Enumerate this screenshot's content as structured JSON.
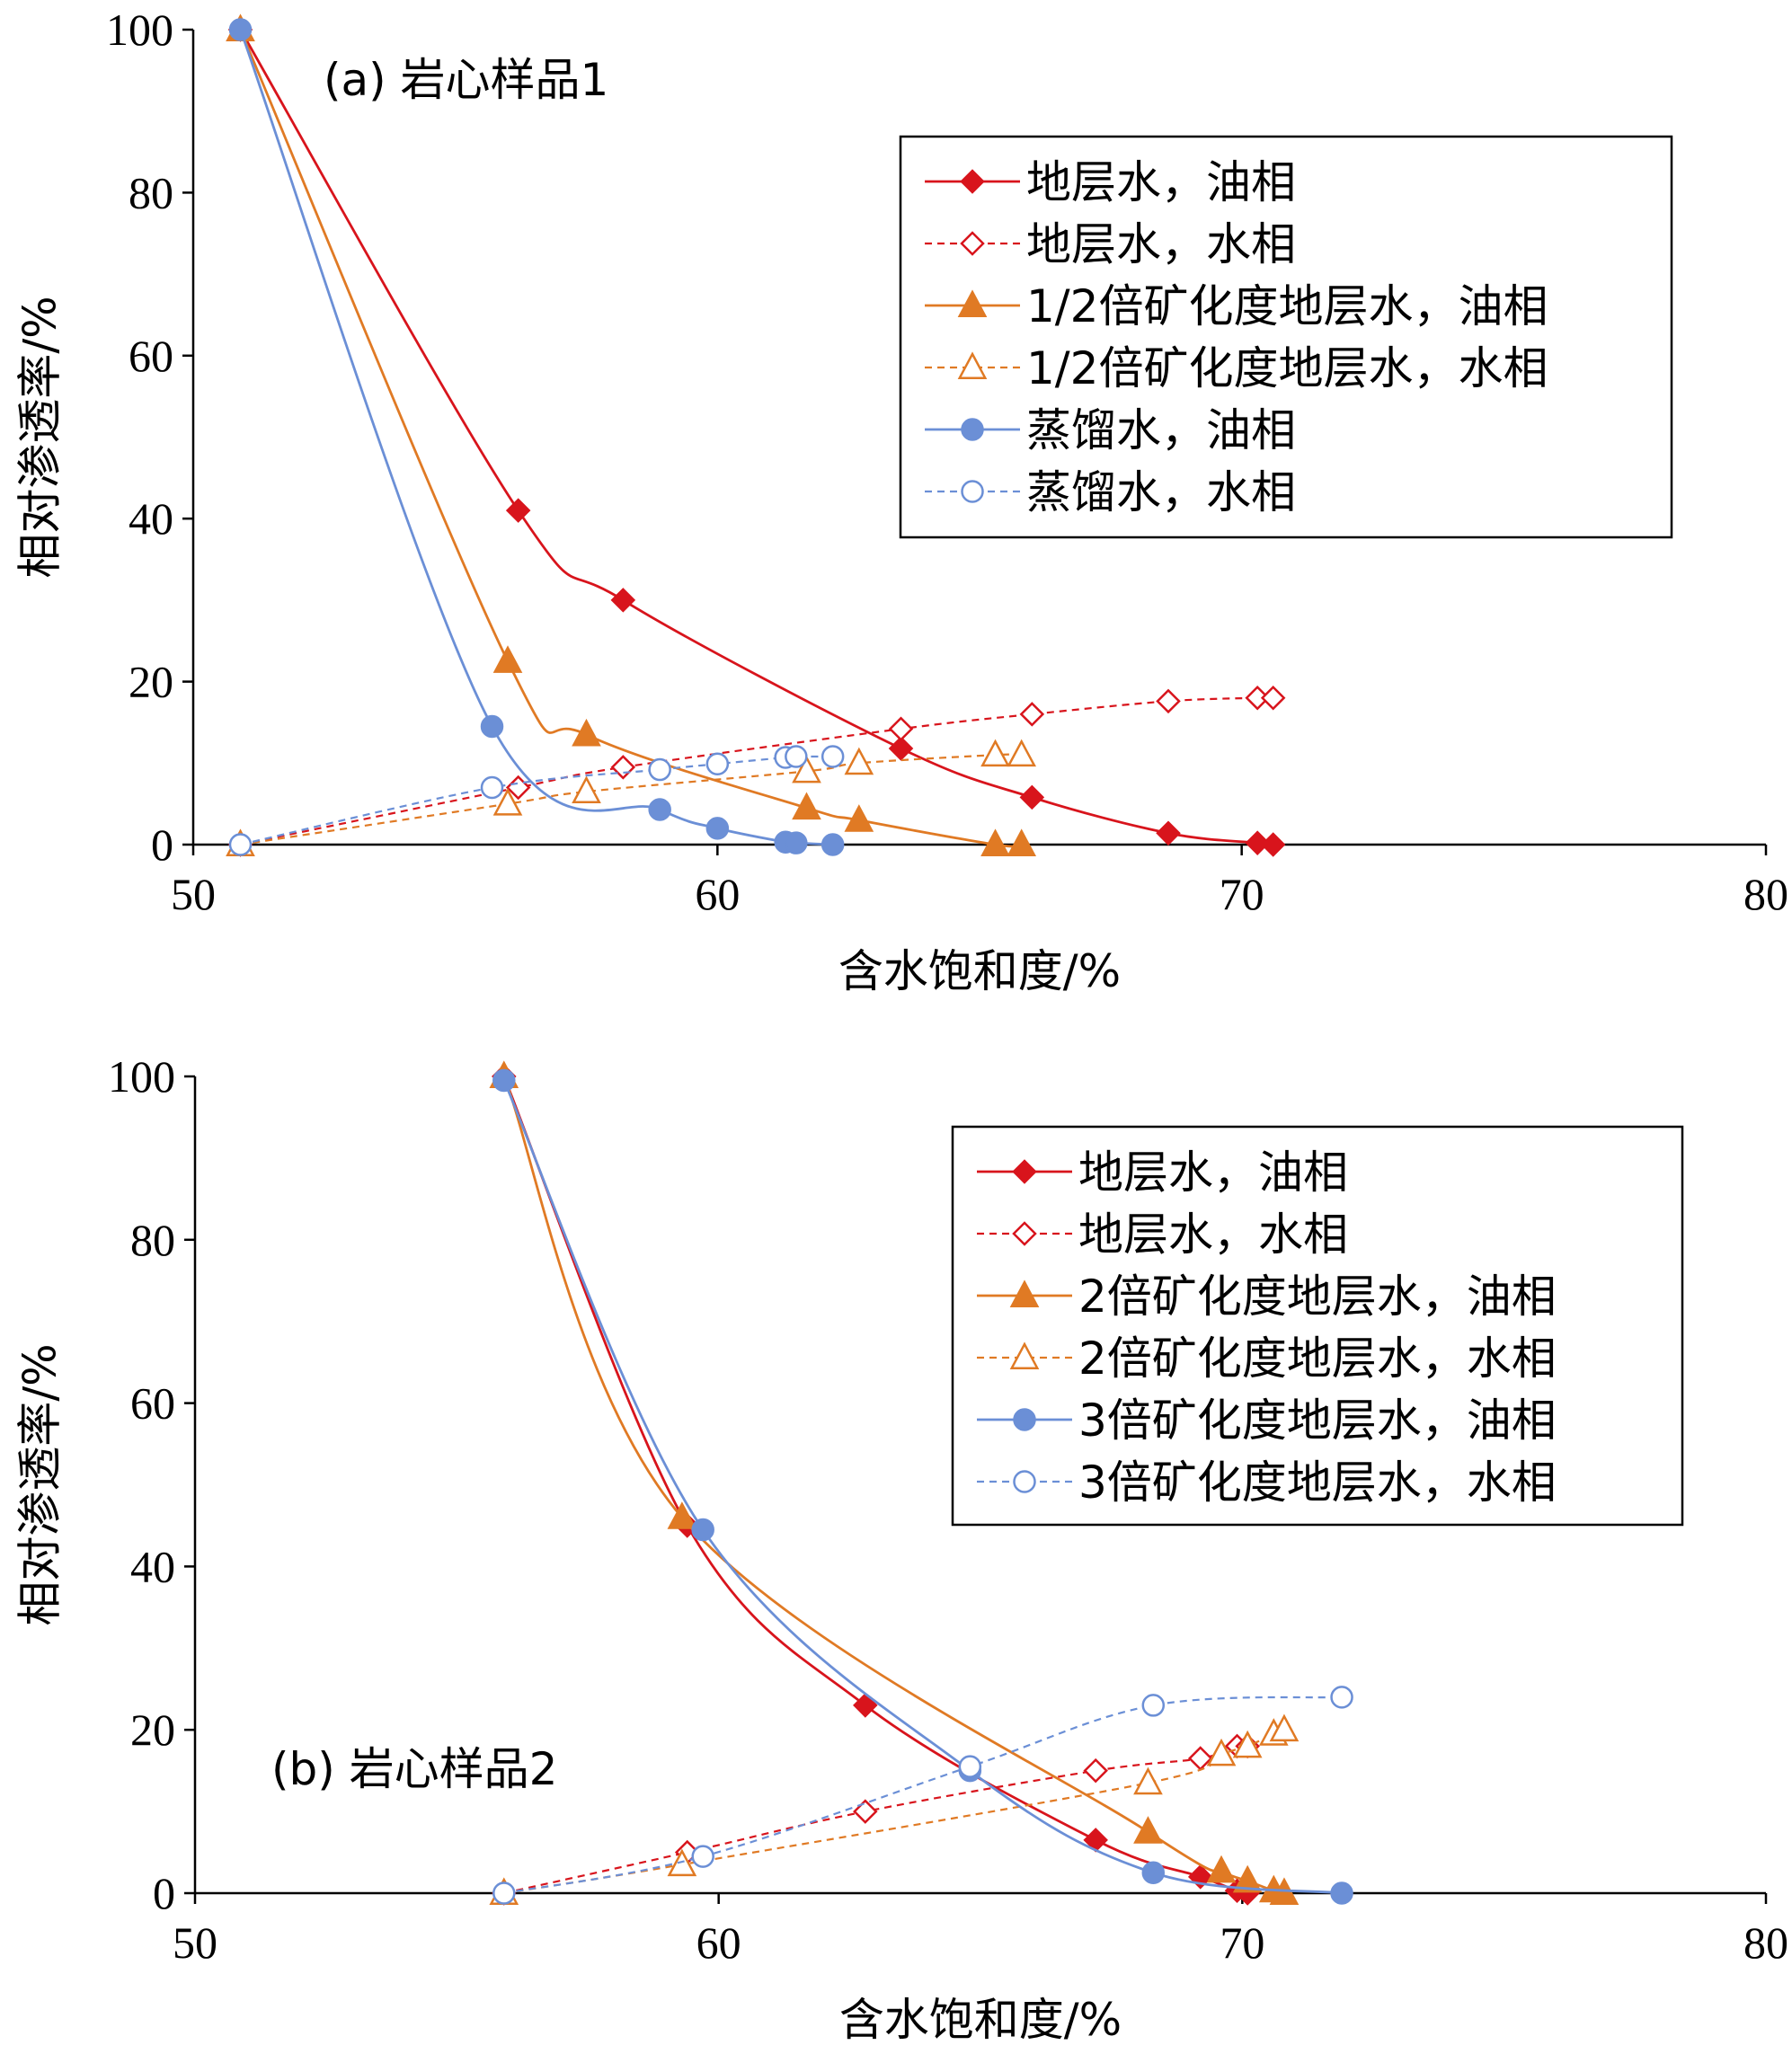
{
  "chart_data": [
    {
      "type": "line",
      "annotation": "(a) 岩心样品1",
      "xlabel": "含水饱和度/%",
      "ylabel": "相对渗透率/%",
      "xlim": [
        50,
        80
      ],
      "ylim": [
        0,
        100
      ],
      "xticks": [
        "50",
        "60",
        "70",
        "80"
      ],
      "yticks": [
        "0",
        "20",
        "40",
        "60",
        "80",
        "100"
      ],
      "grid": false,
      "legend_position": "top-right",
      "series": [
        {
          "name": "地层水，油相",
          "color": "#d8141c",
          "marker": "diamond",
          "filled": true,
          "dashed": false,
          "points": [
            [
              50.9,
              100
            ],
            [
              56.2,
              41
            ],
            [
              58.2,
              30
            ],
            [
              63.5,
              11.8
            ],
            [
              66.0,
              5.8
            ],
            [
              68.6,
              1.4
            ],
            [
              70.3,
              0.2
            ],
            [
              70.6,
              0
            ]
          ]
        },
        {
          "name": "地层水，水相",
          "color": "#d8141c",
          "marker": "diamond",
          "filled": false,
          "dashed": true,
          "points": [
            [
              50.9,
              0
            ],
            [
              56.2,
              7
            ],
            [
              58.2,
              9.5
            ],
            [
              63.5,
              14.2
            ],
            [
              66.0,
              16
            ],
            [
              68.6,
              17.6
            ],
            [
              70.3,
              18
            ],
            [
              70.6,
              18
            ]
          ]
        },
        {
          "name": "1/2倍矿化度地层水，油相",
          "color": "#e07a24",
          "marker": "triangle",
          "filled": true,
          "dashed": false,
          "points": [
            [
              50.9,
              100
            ],
            [
              56.0,
              22.5
            ],
            [
              57.5,
              13.5
            ],
            [
              61.7,
              4.5
            ],
            [
              62.7,
              3.0
            ],
            [
              65.3,
              0
            ],
            [
              65.8,
              0
            ]
          ]
        },
        {
          "name": "1/2倍矿化度地层水，水相",
          "color": "#e07a24",
          "marker": "triangle",
          "filled": false,
          "dashed": true,
          "points": [
            [
              50.9,
              0
            ],
            [
              56.0,
              5
            ],
            [
              57.5,
              6.5
            ],
            [
              61.7,
              9
            ],
            [
              62.7,
              10
            ],
            [
              65.3,
              11
            ],
            [
              65.8,
              11
            ]
          ]
        },
        {
          "name": "蒸馏水，油相",
          "color": "#6b8fd6",
          "marker": "circle",
          "filled": true,
          "dashed": false,
          "points": [
            [
              50.9,
              100
            ],
            [
              55.7,
              14.5
            ],
            [
              58.9,
              4.3
            ],
            [
              60.0,
              2.0
            ],
            [
              61.3,
              0.3
            ],
            [
              61.5,
              0.2
            ],
            [
              62.2,
              0
            ]
          ]
        },
        {
          "name": "蒸馏水，水相",
          "color": "#6b8fd6",
          "marker": "circle",
          "filled": false,
          "dashed": true,
          "points": [
            [
              50.9,
              0
            ],
            [
              55.7,
              7
            ],
            [
              58.9,
              9.2
            ],
            [
              60.0,
              9.9
            ],
            [
              61.3,
              10.7
            ],
            [
              61.5,
              10.8
            ],
            [
              62.2,
              10.8
            ]
          ]
        }
      ]
    },
    {
      "type": "line",
      "annotation": "(b) 岩心样品2",
      "xlabel": "含水饱和度/%",
      "ylabel": "相对渗透率/%",
      "xlim": [
        50,
        80
      ],
      "ylim": [
        0,
        100
      ],
      "xticks": [
        "50",
        "60",
        "70",
        "80"
      ],
      "yticks": [
        "0",
        "20",
        "40",
        "60",
        "80",
        "100"
      ],
      "grid": false,
      "legend_position": "top-right",
      "series": [
        {
          "name": "地层水，油相",
          "color": "#d8141c",
          "marker": "diamond",
          "filled": true,
          "dashed": false,
          "points": [
            [
              55.9,
              100
            ],
            [
              59.4,
              45
            ],
            [
              62.8,
              23
            ],
            [
              67.2,
              6.5
            ],
            [
              69.2,
              2
            ],
            [
              69.9,
              0.3
            ],
            [
              70.1,
              0
            ]
          ]
        },
        {
          "name": "地层水，水相",
          "color": "#d8141c",
          "marker": "diamond",
          "filled": false,
          "dashed": true,
          "points": [
            [
              55.9,
              0
            ],
            [
              59.4,
              5
            ],
            [
              62.8,
              10
            ],
            [
              67.2,
              15
            ],
            [
              69.2,
              16.5
            ],
            [
              69.9,
              18
            ],
            [
              70.1,
              18
            ]
          ]
        },
        {
          "name": "2倍矿化度地层水，油相",
          "color": "#e07a24",
          "marker": "triangle",
          "filled": true,
          "dashed": false,
          "points": [
            [
              55.9,
              100
            ],
            [
              59.3,
              46
            ],
            [
              68.2,
              7.5
            ],
            [
              69.6,
              2.7
            ],
            [
              70.1,
              1.5
            ],
            [
              70.6,
              0.3
            ],
            [
              70.8,
              0
            ]
          ]
        },
        {
          "name": "2倍矿化度地层水，水相",
          "color": "#e07a24",
          "marker": "triangle",
          "filled": false,
          "dashed": true,
          "points": [
            [
              55.9,
              0
            ],
            [
              59.3,
              3.5
            ],
            [
              68.2,
              13.5
            ],
            [
              69.6,
              17
            ],
            [
              70.1,
              18
            ],
            [
              70.6,
              19.5
            ],
            [
              70.8,
              20
            ]
          ]
        },
        {
          "name": "3倍矿化度地层水，油相",
          "color": "#6b8fd6",
          "marker": "circle",
          "filled": true,
          "dashed": false,
          "points": [
            [
              55.9,
              99.5
            ],
            [
              59.7,
              44.5
            ],
            [
              64.8,
              15
            ],
            [
              68.3,
              2.5
            ],
            [
              71.9,
              0
            ]
          ]
        },
        {
          "name": "3倍矿化度地层水，水相",
          "color": "#6b8fd6",
          "marker": "circle",
          "filled": false,
          "dashed": true,
          "points": [
            [
              55.9,
              0
            ],
            [
              59.7,
              4.5
            ],
            [
              64.8,
              15.5
            ],
            [
              68.3,
              23
            ],
            [
              71.9,
              24
            ]
          ]
        }
      ]
    }
  ]
}
